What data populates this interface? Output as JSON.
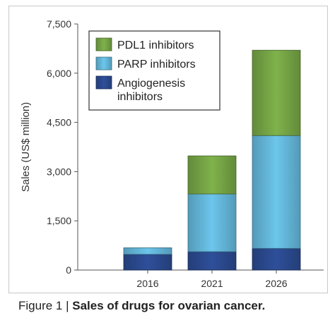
{
  "chart_data": {
    "type": "bar",
    "stacked": true,
    "categories": [
      "2016",
      "2021",
      "2026"
    ],
    "series": [
      {
        "name": "Angiogenesis inhibitors",
        "values": [
          480,
          560,
          660
        ],
        "color": "#2e4f9a"
      },
      {
        "name": "PARP inhibitors",
        "values": [
          200,
          1760,
          3440
        ],
        "color": "#6cc6ec"
      },
      {
        "name": "PDL1 inhibitors",
        "values": [
          0,
          1160,
          2600
        ],
        "color": "#7fb24b"
      }
    ],
    "legend_order": [
      "PDL1 inhibitors",
      "PARP inhibitors",
      "Angiogenesis inhibitors"
    ],
    "legend_lines": {
      "PDL1 inhibitors": [
        "PDL1 inhibitors"
      ],
      "PARP inhibitors": [
        "PARP inhibitors"
      ],
      "Angiogenesis inhibitors": [
        "Angiogenesis",
        "inhibitors"
      ]
    },
    "legend_position": "top-left",
    "ylabel": "Sales (US$ million)",
    "xlabel": "",
    "ylim": [
      0,
      7500
    ],
    "yticks": [
      0,
      1500,
      3000,
      4500,
      6000,
      7500
    ],
    "ytick_labels": [
      "0",
      "1,500",
      "3,000",
      "4,500",
      "6,000",
      "7,500"
    ],
    "grid": false
  },
  "caption": {
    "prefix": "Figure 1 | ",
    "title": "Sales of drugs for ovarian cancer."
  }
}
